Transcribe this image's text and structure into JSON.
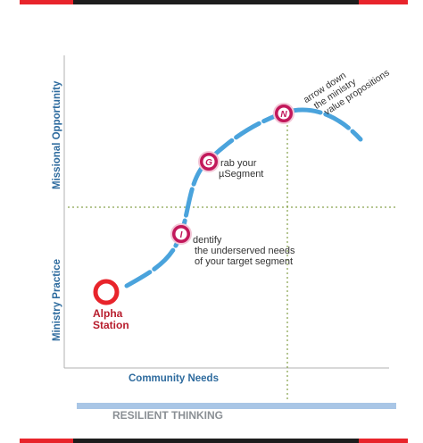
{
  "axes": {
    "y_top_label": "Missional Opportunity",
    "y_bottom_label": "Ministry Practice",
    "x_label": "Community Needs"
  },
  "footer": {
    "text": "RESILIENT THINKING"
  },
  "nodes": {
    "o": {
      "letter": "O",
      "line1": "Alpha",
      "line2": "Station"
    },
    "i": {
      "letter": "I",
      "line1": "dentify",
      "line2": "the underserved needs",
      "line3": "of your target segment"
    },
    "g": {
      "letter": "G",
      "line1": "rab your",
      "line2": "µSegment"
    },
    "n": {
      "letter": "N",
      "line1": "arrow down",
      "line2": "the ministry",
      "line3": "value propositions"
    }
  },
  "colors": {
    "curve": "#4aa3dc",
    "node_ring": "#c2185b",
    "start_ring": "#e8242b",
    "axis_text": "#2e6b9e",
    "guide_line": "#6b8e23"
  }
}
